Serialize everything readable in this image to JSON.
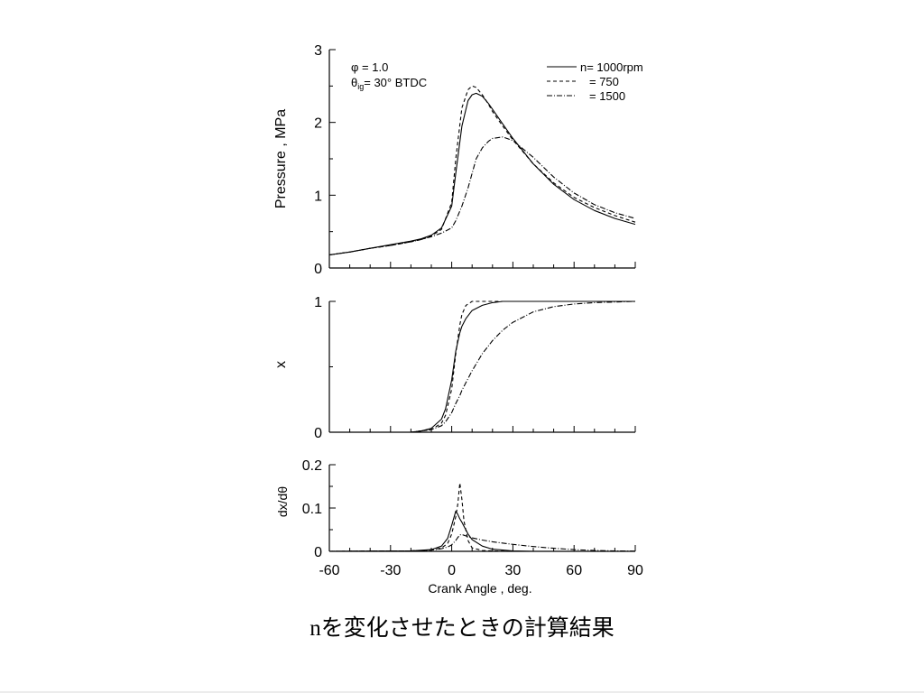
{
  "caption": {
    "prefix": "n",
    "text": "を変化させたときの計算結果"
  },
  "chart_data": [
    {
      "type": "line",
      "panel": "pressure",
      "ylabel": "Pressure , MPa",
      "xlim": [
        -60,
        90
      ],
      "ylim": [
        0,
        3
      ],
      "yticks": [
        "0",
        "1",
        "2",
        "3"
      ],
      "annotations": {
        "phi": "φ = 1.0",
        "theta_symbol": "θ",
        "theta_sub": "ig",
        "theta_value": "= 30°  BTDC"
      },
      "legend_position": "top-right",
      "legend": [
        {
          "label": "n= 1000rpm",
          "dash": "solid"
        },
        {
          "label": "= 750",
          "dash": "dashed"
        },
        {
          "label": "= 1500",
          "dash": "dashdot"
        }
      ],
      "x": [
        -60,
        -50,
        -40,
        -30,
        -20,
        -15,
        -10,
        -5,
        0,
        2,
        5,
        8,
        10,
        12,
        15,
        18,
        20,
        25,
        30,
        40,
        50,
        60,
        70,
        80,
        90
      ],
      "series": [
        {
          "name": "n= 1000rpm",
          "dash": "solid",
          "values": [
            0.18,
            0.22,
            0.27,
            0.32,
            0.37,
            0.4,
            0.45,
            0.55,
            0.85,
            1.3,
            1.95,
            2.3,
            2.38,
            2.4,
            2.36,
            2.26,
            2.18,
            1.98,
            1.78,
            1.43,
            1.15,
            0.94,
            0.79,
            0.68,
            0.6
          ]
        },
        {
          "name": "= 750",
          "dash": "dashed",
          "values": [
            0.18,
            0.22,
            0.27,
            0.31,
            0.36,
            0.39,
            0.44,
            0.53,
            0.9,
            1.5,
            2.2,
            2.45,
            2.5,
            2.48,
            2.38,
            2.25,
            2.15,
            1.95,
            1.76,
            1.43,
            1.17,
            0.97,
            0.83,
            0.72,
            0.63
          ]
        },
        {
          "name": "= 1500",
          "dash": "dashdot",
          "values": [
            0.18,
            0.22,
            0.27,
            0.31,
            0.36,
            0.39,
            0.43,
            0.48,
            0.55,
            0.65,
            0.85,
            1.1,
            1.3,
            1.5,
            1.65,
            1.74,
            1.78,
            1.8,
            1.75,
            1.52,
            1.25,
            1.03,
            0.87,
            0.76,
            0.68
          ]
        }
      ]
    },
    {
      "type": "line",
      "panel": "mass-fraction-burned",
      "ylabel": "x",
      "xlim": [
        -60,
        90
      ],
      "ylim": [
        0,
        1
      ],
      "yticks": [
        "0",
        "1"
      ],
      "x": [
        -60,
        -20,
        -15,
        -10,
        -5,
        -3,
        0,
        2,
        4,
        5,
        7,
        10,
        15,
        20,
        25,
        30,
        40,
        50,
        60,
        70,
        80,
        90
      ],
      "series": [
        {
          "name": "n= 1000rpm",
          "dash": "solid",
          "values": [
            0,
            0,
            0.01,
            0.03,
            0.1,
            0.18,
            0.4,
            0.62,
            0.76,
            0.81,
            0.87,
            0.93,
            0.97,
            0.99,
            1.0,
            1.0,
            1.0,
            1.0,
            1.0,
            1.0,
            1.0,
            1.0
          ]
        },
        {
          "name": "= 750",
          "dash": "dashed",
          "values": [
            0,
            0,
            0.01,
            0.02,
            0.07,
            0.13,
            0.33,
            0.6,
            0.82,
            0.9,
            0.97,
            1.0,
            1.0,
            1.0,
            1.0,
            1.0,
            1.0,
            1.0,
            1.0,
            1.0,
            1.0,
            1.0
          ]
        },
        {
          "name": "= 1500",
          "dash": "dashdot",
          "values": [
            0,
            0,
            0.01,
            0.02,
            0.05,
            0.08,
            0.15,
            0.22,
            0.28,
            0.32,
            0.38,
            0.47,
            0.6,
            0.7,
            0.78,
            0.84,
            0.92,
            0.96,
            0.98,
            0.99,
            0.995,
            1.0
          ]
        }
      ]
    },
    {
      "type": "line",
      "panel": "burn-rate",
      "ylabel": "dx/dθ",
      "xlabel": "Crank Angle , deg.",
      "xlim": [
        -60,
        90
      ],
      "ylim": [
        0,
        0.2
      ],
      "xticks": [
        "-60",
        "-30",
        "0",
        "30",
        "60",
        "90"
      ],
      "yticks": [
        "0",
        "0.1",
        "0.2"
      ],
      "x": [
        -60,
        -20,
        -10,
        -5,
        -2,
        0,
        2,
        3,
        4,
        5,
        6,
        8,
        10,
        15,
        20,
        30,
        40,
        50,
        60,
        70,
        80,
        90
      ],
      "series": [
        {
          "name": "n= 1000rpm",
          "dash": "solid",
          "values": [
            0,
            0.001,
            0.004,
            0.012,
            0.03,
            0.06,
            0.093,
            0.085,
            0.075,
            0.067,
            0.058,
            0.04,
            0.027,
            0.012,
            0.005,
            0.001,
            0,
            0,
            0,
            0,
            0,
            0
          ]
        },
        {
          "name": "= 750",
          "dash": "dashed",
          "values": [
            0,
            0.001,
            0.003,
            0.008,
            0.018,
            0.04,
            0.08,
            0.11,
            0.158,
            0.12,
            0.07,
            0.025,
            0.008,
            0.002,
            0.001,
            0,
            0,
            0,
            0,
            0,
            0,
            0
          ]
        },
        {
          "name": "= 1500",
          "dash": "dashdot",
          "values": [
            0,
            0.001,
            0.003,
            0.006,
            0.01,
            0.015,
            0.025,
            0.032,
            0.038,
            0.039,
            0.037,
            0.034,
            0.031,
            0.026,
            0.022,
            0.016,
            0.011,
            0.007,
            0.004,
            0.002,
            0.001,
            0.0005
          ]
        }
      ]
    }
  ]
}
